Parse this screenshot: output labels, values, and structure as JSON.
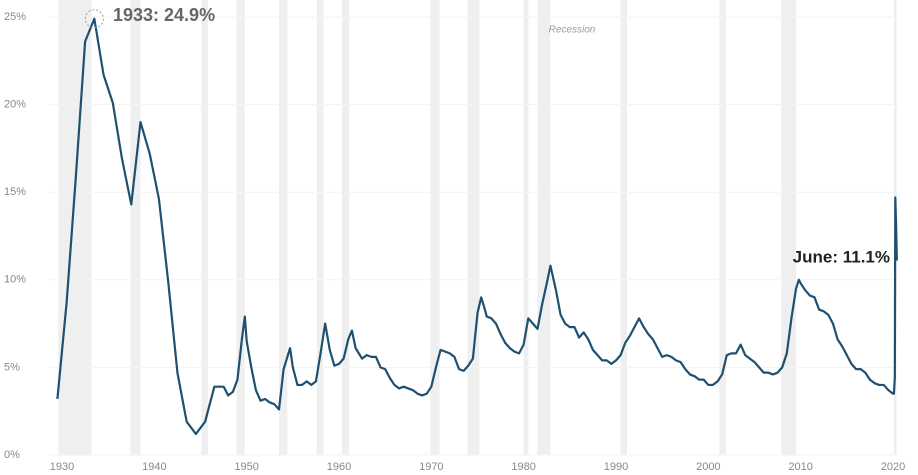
{
  "chart_data": {
    "type": "line",
    "color": "#1f5070",
    "grid": true,
    "x": [
      1929.5,
      1930.5,
      1931.5,
      1932.5,
      1933.5,
      1934.5,
      1935.5,
      1936.5,
      1937.5,
      1938.5,
      1939.5,
      1940.5,
      1941.5,
      1942.5,
      1943.5,
      1944.5,
      1945.5,
      1946.5,
      1947.5,
      1948.0,
      1948.5,
      1949.0,
      1949.5,
      1949.8,
      1950.0,
      1950.5,
      1951.0,
      1951.5,
      1952.0,
      1952.5,
      1953.0,
      1953.5,
      1954.0,
      1954.7,
      1955.0,
      1955.5,
      1956.0,
      1956.5,
      1957.0,
      1957.5,
      1958.0,
      1958.5,
      1959.0,
      1959.5,
      1960.0,
      1960.5,
      1961.0,
      1961.4,
      1961.8,
      1962.5,
      1963.0,
      1963.5,
      1964.0,
      1964.5,
      1965.0,
      1965.5,
      1966.0,
      1966.5,
      1967.0,
      1967.5,
      1968.0,
      1968.5,
      1969.0,
      1969.5,
      1970.0,
      1970.5,
      1971.0,
      1971.5,
      1972.0,
      1972.5,
      1973.0,
      1973.5,
      1974.0,
      1974.5,
      1975.0,
      1975.4,
      1975.8,
      1976.0,
      1976.5,
      1977.0,
      1977.5,
      1978.0,
      1978.5,
      1979.0,
      1979.5,
      1980.0,
      1980.5,
      1981.0,
      1981.5,
      1982.0,
      1982.5,
      1982.9,
      1983.5,
      1984.0,
      1984.5,
      1985.0,
      1985.5,
      1986.0,
      1986.5,
      1987.0,
      1987.5,
      1988.0,
      1988.5,
      1989.0,
      1989.5,
      1990.0,
      1990.5,
      1991.0,
      1991.5,
      1992.0,
      1992.5,
      1993.0,
      1993.5,
      1994.0,
      1994.5,
      1995.0,
      1995.5,
      1996.0,
      1996.5,
      1997.0,
      1997.5,
      1998.0,
      1998.5,
      1999.0,
      1999.5,
      2000.0,
      2000.5,
      2001.0,
      2001.5,
      2002.0,
      2002.5,
      2003.0,
      2003.5,
      2004.0,
      2004.5,
      2005.0,
      2005.5,
      2006.0,
      2006.5,
      2007.0,
      2007.5,
      2008.0,
      2008.5,
      2009.0,
      2009.5,
      2009.8,
      2010.0,
      2010.5,
      2011.0,
      2011.5,
      2012.0,
      2012.5,
      2013.0,
      2013.5,
      2014.0,
      2014.5,
      2015.0,
      2015.5,
      2016.0,
      2016.5,
      2017.0,
      2017.5,
      2018.0,
      2018.5,
      2019.0,
      2019.5,
      2020.0,
      2020.1,
      2020.2,
      2020.25,
      2020.33,
      2020.42
    ],
    "values": [
      3.2,
      8.7,
      15.9,
      23.6,
      24.9,
      21.7,
      20.1,
      16.9,
      14.3,
      19.0,
      17.2,
      14.6,
      9.9,
      4.7,
      1.9,
      1.2,
      1.9,
      3.9,
      3.9,
      3.4,
      3.6,
      4.3,
      6.7,
      7.9,
      6.5,
      5.0,
      3.7,
      3.1,
      3.2,
      3.0,
      2.9,
      2.6,
      4.9,
      6.1,
      5.0,
      4.0,
      4.0,
      4.2,
      4.0,
      4.2,
      5.8,
      7.5,
      6.0,
      5.1,
      5.2,
      5.5,
      6.6,
      7.1,
      6.1,
      5.5,
      5.7,
      5.6,
      5.6,
      5.0,
      4.9,
      4.4,
      4.0,
      3.8,
      3.9,
      3.8,
      3.7,
      3.5,
      3.4,
      3.5,
      3.9,
      5.0,
      6.0,
      5.9,
      5.8,
      5.6,
      4.9,
      4.8,
      5.1,
      5.5,
      8.1,
      9.0,
      8.3,
      7.9,
      7.8,
      7.5,
      6.9,
      6.4,
      6.1,
      5.9,
      5.8,
      6.3,
      7.8,
      7.5,
      7.2,
      8.6,
      9.8,
      10.8,
      9.4,
      8.0,
      7.5,
      7.3,
      7.3,
      6.7,
      7.0,
      6.6,
      6.0,
      5.7,
      5.4,
      5.4,
      5.2,
      5.4,
      5.7,
      6.4,
      6.8,
      7.3,
      7.8,
      7.3,
      6.9,
      6.6,
      6.1,
      5.6,
      5.7,
      5.6,
      5.4,
      5.3,
      4.9,
      4.6,
      4.5,
      4.3,
      4.3,
      4.0,
      4.0,
      4.2,
      4.6,
      5.7,
      5.8,
      5.8,
      6.3,
      5.7,
      5.5,
      5.3,
      5.0,
      4.7,
      4.7,
      4.6,
      4.7,
      5.0,
      5.8,
      7.8,
      9.5,
      10.0,
      9.8,
      9.4,
      9.1,
      9.0,
      8.3,
      8.2,
      8.0,
      7.5,
      6.6,
      6.2,
      5.7,
      5.2,
      4.9,
      4.9,
      4.7,
      4.3,
      4.1,
      4.0,
      4.0,
      3.7,
      3.5,
      3.5,
      4.4,
      14.7,
      13.3,
      11.1
    ],
    "xlim": [
      1929.5,
      2020.5
    ],
    "xticks": [
      1930,
      1940,
      1950,
      1960,
      1970,
      1980,
      1990,
      2000,
      2010,
      2020
    ],
    "ylim": [
      0,
      25
    ],
    "yticks": [
      {
        "value": 0,
        "label": "0%"
      },
      {
        "value": 5,
        "label": "5%"
      },
      {
        "value": 10,
        "label": "10%"
      },
      {
        "value": 15,
        "label": "15%"
      },
      {
        "value": 20,
        "label": "20%"
      },
      {
        "value": 25,
        "label": "25%"
      }
    ],
    "recession_label": "Recession",
    "recessions": [
      [
        1929.6,
        1933.2
      ],
      [
        1937.4,
        1938.5
      ],
      [
        1945.1,
        1945.8
      ],
      [
        1948.9,
        1949.8
      ],
      [
        1953.5,
        1954.4
      ],
      [
        1957.6,
        1958.3
      ],
      [
        1960.3,
        1961.1
      ],
      [
        1969.9,
        1970.9
      ],
      [
        1973.9,
        1975.2
      ],
      [
        1980.0,
        1980.5
      ],
      [
        1981.5,
        1982.9
      ],
      [
        1990.5,
        1991.2
      ],
      [
        2001.2,
        2001.9
      ],
      [
        2007.9,
        2009.5
      ],
      [
        2020.1,
        2020.4
      ]
    ],
    "annotations": {
      "peak": "1933: 24.9%",
      "latest": "June: 11.1%"
    }
  }
}
